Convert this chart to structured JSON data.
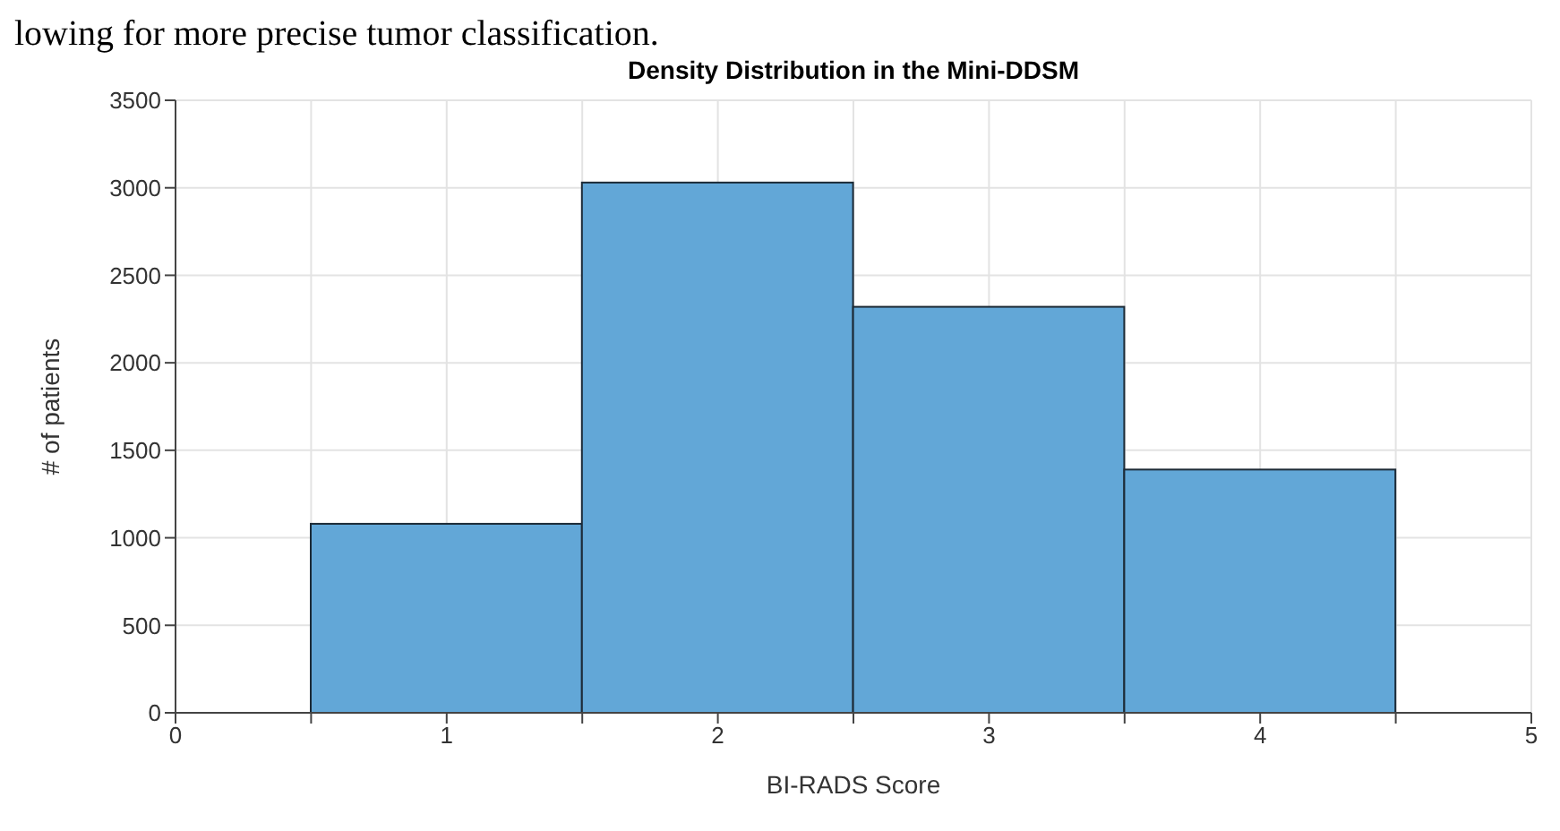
{
  "chart_data": {
    "type": "histogram",
    "title": "Density Distribution in the Mini-DDSM",
    "xlabel": "BI-RADS Score",
    "ylabel": "# of patients",
    "annotations": [
      "lowing for more precise tumor classification."
    ],
    "bins": [
      0.5,
      1.5,
      2.5,
      3.5,
      4.5
    ],
    "values": [
      1080,
      3030,
      2320,
      1390
    ],
    "color": "#62a7d7",
    "xlim": [
      0,
      5
    ],
    "xticks": [
      0,
      {
        "value": 0.5,
        "label": null
      },
      1,
      {
        "value": 1.5,
        "label": null
      },
      2,
      {
        "value": 2.5,
        "label": null
      },
      3,
      {
        "value": 3.5,
        "label": null
      },
      4,
      {
        "value": 4.5,
        "label": null
      },
      5
    ],
    "ylim": [
      0,
      3500
    ],
    "yticks": [
      0,
      500,
      1000,
      1500,
      2000,
      2500,
      3000,
      3500
    ],
    "grid": true
  }
}
